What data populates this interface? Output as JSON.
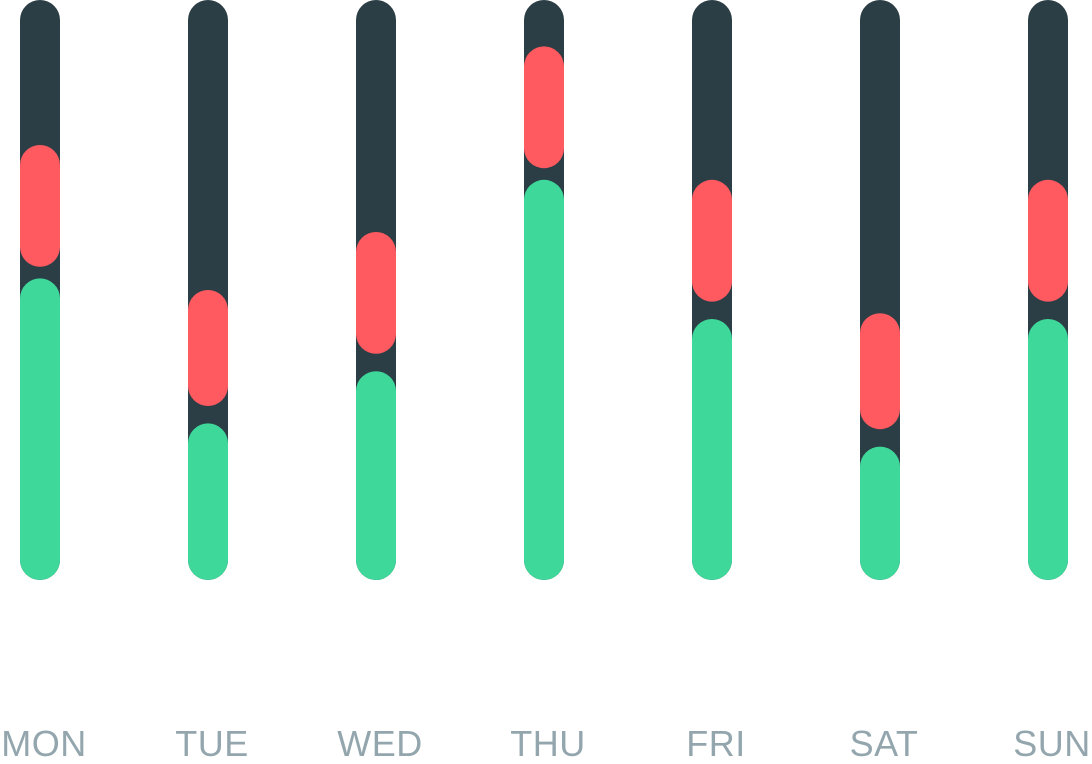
{
  "colors": {
    "track": "#2b3d45",
    "green": "#3fd89b",
    "red": "#ff5a60",
    "label": "#94a6ad",
    "background": "#ffffff"
  },
  "chart_data": {
    "type": "bar",
    "categories": [
      "MON",
      "TUE",
      "WED",
      "THU",
      "FRI",
      "SAT",
      "SUN"
    ],
    "ylim": [
      0,
      100
    ],
    "grid": false,
    "legend": "none",
    "series": [
      {
        "values": [
          52,
          27,
          36,
          69,
          45,
          23,
          45
        ]
      },
      {
        "values": [
          [
            54,
            75
          ],
          [
            30,
            50
          ],
          [
            39,
            60
          ],
          [
            71,
            92
          ],
          [
            48,
            69
          ],
          [
            26,
            46
          ],
          [
            48,
            69
          ]
        ]
      }
    ]
  }
}
